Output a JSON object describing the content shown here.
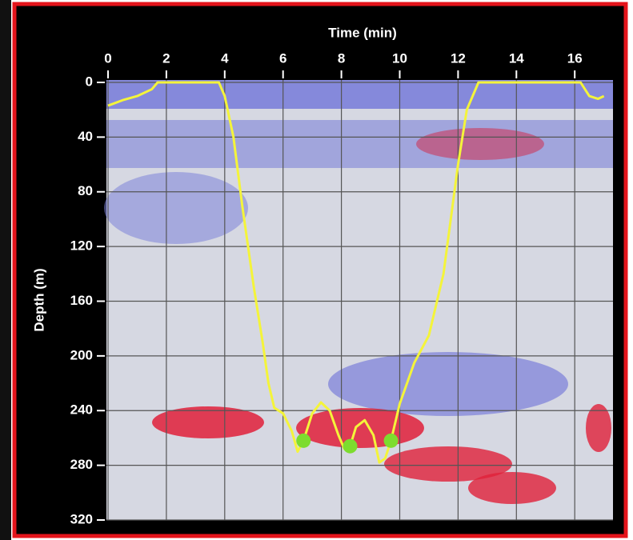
{
  "chart_data": {
    "type": "line",
    "x_label": "Time (min)",
    "y_label": "Depth (m)",
    "xlim": [
      0,
      17.2
    ],
    "ylim": [
      0,
      320
    ],
    "y_inverted": true,
    "xticks": [
      0,
      2,
      4,
      6,
      8,
      10,
      12,
      14,
      16
    ],
    "yticks": [
      0,
      40,
      80,
      120,
      160,
      200,
      240,
      280,
      320
    ],
    "grid": true,
    "series": [
      {
        "color": "#f4f43a",
        "x": [
          0,
          0.5,
          1,
          1.5,
          1.7,
          2,
          3,
          3.5,
          3.8,
          4,
          4.3,
          4.6,
          5,
          5.3,
          5.5,
          5.7,
          6,
          6.3,
          6.5,
          6.7,
          7,
          7.3,
          7.6,
          7.9,
          8.1,
          8.3,
          8.5,
          8.8,
          9.1,
          9.3,
          9.5,
          9.7,
          10,
          10.5,
          11,
          11.5,
          12,
          12.3,
          12.7,
          13,
          14,
          15,
          16,
          16.2,
          16.5,
          16.8,
          17
        ],
        "values": [
          17,
          13,
          10,
          5,
          0,
          0,
          0,
          0,
          0,
          10,
          40,
          90,
          150,
          190,
          220,
          238,
          242,
          255,
          270,
          262,
          242,
          234,
          240,
          258,
          268,
          266,
          252,
          247,
          258,
          278,
          275,
          262,
          235,
          205,
          185,
          140,
          60,
          20,
          0,
          0,
          0,
          0,
          0,
          0,
          10,
          12,
          10
        ]
      }
    ],
    "points": {
      "color": "#7ddc2f",
      "x": [
        6.7,
        8.3,
        9.7
      ],
      "values": [
        262,
        266,
        262
      ]
    }
  }
}
